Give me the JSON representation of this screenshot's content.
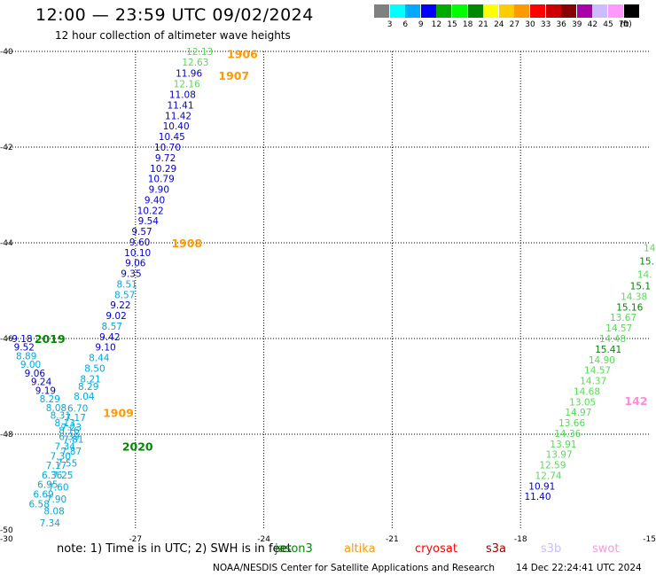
{
  "title": "12:00 — 23:59 UTC 09/02/2024",
  "subtitle": "12 hour collection of altimeter wave heights",
  "legend": {
    "colors": [
      "#808080",
      "#00ffff",
      "#00aaff",
      "#0000ff",
      "#00aa00",
      "#00ff00",
      "#008800",
      "#ffff00",
      "#ffcc00",
      "#ff9900",
      "#ff0000",
      "#cc0000",
      "#880000",
      "#aa00aa",
      "#ccbbff",
      "#ff99ff",
      "#000000"
    ],
    "labels": [
      "3",
      "6",
      "9",
      "12",
      "15",
      "18",
      "21",
      "24",
      "27",
      "30",
      "33",
      "36",
      "39",
      "42",
      "45",
      "70"
    ],
    "unit": "(ft)"
  },
  "axes": {
    "lon_ticks": [
      "-30",
      "-27",
      "-24",
      "-21",
      "-18",
      "-15"
    ],
    "lat_ticks": [
      "-40",
      "-42",
      "-44",
      "-46",
      "-48",
      "-50"
    ]
  },
  "passes": [
    {
      "label": "1906",
      "color": "#ff9900",
      "lon": -24.5,
      "lat": -40.05
    },
    {
      "label": "1907",
      "color": "#ff9900",
      "lon": -24.7,
      "lat": -40.5
    },
    {
      "label": "1908",
      "color": "#ff9900",
      "lon": -25.8,
      "lat": -44.0
    },
    {
      "label": "2019",
      "color": "#008800",
      "lon": -29.0,
      "lat": -46.0
    },
    {
      "label": "1909",
      "color": "#ff9900",
      "lon": -27.4,
      "lat": -47.55
    },
    {
      "label": "2020",
      "color": "#008800",
      "lon": -26.95,
      "lat": -48.25
    },
    {
      "label": "142",
      "color": "#ff88dd",
      "lon": -15.3,
      "lat": -47.3
    }
  ],
  "wave_heights": [
    {
      "value": "12.13",
      "color": "#55dd55",
      "lon": -25.5,
      "lat": -40.0
    },
    {
      "value": "12.63",
      "color": "#55dd55",
      "lon": -25.6,
      "lat": -40.22
    },
    {
      "value": "11.96",
      "color": "#0000cc",
      "lon": -25.75,
      "lat": -40.45
    },
    {
      "value": "12.16",
      "color": "#55dd55",
      "lon": -25.8,
      "lat": -40.68
    },
    {
      "value": "11.08",
      "color": "#0000cc",
      "lon": -25.9,
      "lat": -40.9
    },
    {
      "value": "11.41",
      "color": "#0000cc",
      "lon": -25.95,
      "lat": -41.12
    },
    {
      "value": "11.42",
      "color": "#0000cc",
      "lon": -26.0,
      "lat": -41.34
    },
    {
      "value": "10.40",
      "color": "#0000cc",
      "lon": -26.05,
      "lat": -41.56
    },
    {
      "value": "10.45",
      "color": "#0000cc",
      "lon": -26.15,
      "lat": -41.78
    },
    {
      "value": "10.70",
      "color": "#0000cc",
      "lon": -26.25,
      "lat": -42.0
    },
    {
      "value": "9.72",
      "color": "#0000cc",
      "lon": -26.3,
      "lat": -42.22
    },
    {
      "value": "10.29",
      "color": "#0000cc",
      "lon": -26.35,
      "lat": -42.44
    },
    {
      "value": "10.79",
      "color": "#0000cc",
      "lon": -26.4,
      "lat": -42.66
    },
    {
      "value": "9.90",
      "color": "#0000cc",
      "lon": -26.45,
      "lat": -42.88
    },
    {
      "value": "9.40",
      "color": "#0000cc",
      "lon": -26.55,
      "lat": -43.1
    },
    {
      "value": "10.22",
      "color": "#0000cc",
      "lon": -26.65,
      "lat": -43.32
    },
    {
      "value": "9.54",
      "color": "#0000cc",
      "lon": -26.7,
      "lat": -43.54
    },
    {
      "value": "9.57",
      "color": "#0000cc",
      "lon": -26.85,
      "lat": -43.76
    },
    {
      "value": "9.60",
      "color": "#0000cc",
      "lon": -26.9,
      "lat": -43.98
    },
    {
      "value": "10.10",
      "color": "#0000cc",
      "lon": -26.95,
      "lat": -44.2
    },
    {
      "value": "9.06",
      "color": "#0000cc",
      "lon": -27.0,
      "lat": -44.42
    },
    {
      "value": "9.35",
      "color": "#0000cc",
      "lon": -27.1,
      "lat": -44.64
    },
    {
      "value": "8.51",
      "color": "#00aadd",
      "lon": -27.2,
      "lat": -44.86
    },
    {
      "value": "8.57",
      "color": "#00aadd",
      "lon": -27.25,
      "lat": -45.08
    },
    {
      "value": "9.22",
      "color": "#0000cc",
      "lon": -27.35,
      "lat": -45.3
    },
    {
      "value": "9.02",
      "color": "#0000cc",
      "lon": -27.45,
      "lat": -45.52
    },
    {
      "value": "8.57",
      "color": "#00aadd",
      "lon": -27.55,
      "lat": -45.74
    },
    {
      "value": "9.42",
      "color": "#0000cc",
      "lon": -27.6,
      "lat": -45.96
    },
    {
      "value": "9.10",
      "color": "#0000cc",
      "lon": -27.7,
      "lat": -46.18
    },
    {
      "value": "8.44",
      "color": "#00aadd",
      "lon": -27.85,
      "lat": -46.4
    },
    {
      "value": "8.50",
      "color": "#00aadd",
      "lon": -27.95,
      "lat": -46.62
    },
    {
      "value": "8.21",
      "color": "#00aadd",
      "lon": -28.05,
      "lat": -46.84
    },
    {
      "value": "8.29",
      "color": "#00aadd",
      "lon": -28.1,
      "lat": -47.0
    },
    {
      "value": "8.04",
      "color": "#00aadd",
      "lon": -28.2,
      "lat": -47.2
    },
    {
      "value": "6.70",
      "color": "#00aadd",
      "lon": -28.35,
      "lat": -47.45
    },
    {
      "value": "7.17",
      "color": "#00aadd",
      "lon": -28.4,
      "lat": -47.65
    },
    {
      "value": "7.23",
      "color": "#00aadd",
      "lon": -28.5,
      "lat": -47.85
    },
    {
      "value": "6.39",
      "color": "#00aadd",
      "lon": -28.55,
      "lat": -48.05
    },
    {
      "value": "7.34",
      "color": "#00aadd",
      "lon": -28.65,
      "lat": -48.25
    },
    {
      "value": "7.30",
      "color": "#00aadd",
      "lon": -28.75,
      "lat": -48.45
    },
    {
      "value": "7.17",
      "color": "#00aadd",
      "lon": -28.85,
      "lat": -48.65
    },
    {
      "value": "6.36",
      "color": "#00aadd",
      "lon": -28.95,
      "lat": -48.85
    },
    {
      "value": "6.95",
      "color": "#00aadd",
      "lon": -29.05,
      "lat": -49.05
    },
    {
      "value": "6.69",
      "color": "#00aadd",
      "lon": -29.15,
      "lat": -49.25
    },
    {
      "value": "6.58",
      "color": "#00aadd",
      "lon": -29.25,
      "lat": -49.45
    },
    {
      "value": "9.18",
      "color": "#0000cc",
      "lon": -29.65,
      "lat": -46.0
    },
    {
      "value": "9.52",
      "color": "#0000cc",
      "lon": -29.6,
      "lat": -46.18
    },
    {
      "value": "8.89",
      "color": "#00aadd",
      "lon": -29.55,
      "lat": -46.36
    },
    {
      "value": "9.00",
      "color": "#00aadd",
      "lon": -29.45,
      "lat": -46.54
    },
    {
      "value": "9.06",
      "color": "#0000cc",
      "lon": -29.35,
      "lat": -46.72
    },
    {
      "value": "9.24",
      "color": "#0000cc",
      "lon": -29.2,
      "lat": -46.9
    },
    {
      "value": "9.19",
      "color": "#0000cc",
      "lon": -29.1,
      "lat": -47.08
    },
    {
      "value": "8.29",
      "color": "#00aadd",
      "lon": -29.0,
      "lat": -47.26
    },
    {
      "value": "8.08",
      "color": "#00aadd",
      "lon": -28.85,
      "lat": -47.44
    },
    {
      "value": "8.31",
      "color": "#00aadd",
      "lon": -28.75,
      "lat": -47.6
    },
    {
      "value": "8.13",
      "color": "#00aadd",
      "lon": -28.65,
      "lat": -47.76
    },
    {
      "value": "8.16",
      "color": "#00aadd",
      "lon": -28.55,
      "lat": -47.92
    },
    {
      "value": "7.81",
      "color": "#00aadd",
      "lon": -28.45,
      "lat": -48.1
    },
    {
      "value": "7.87",
      "color": "#00aadd",
      "lon": -28.5,
      "lat": -48.35
    },
    {
      "value": "7.55",
      "color": "#00aadd",
      "lon": -28.6,
      "lat": -48.6
    },
    {
      "value": "7.25",
      "color": "#00aadd",
      "lon": -28.7,
      "lat": -48.85
    },
    {
      "value": "7.60",
      "color": "#00aadd",
      "lon": -28.8,
      "lat": -49.1
    },
    {
      "value": "7.90",
      "color": "#00aadd",
      "lon": -28.85,
      "lat": -49.35
    },
    {
      "value": "8.08",
      "color": "#00aadd",
      "lon": -28.9,
      "lat": -49.6
    },
    {
      "value": "7.34",
      "color": "#00aadd",
      "lon": -29.0,
      "lat": -49.85
    },
    {
      "value": "14.",
      "color": "#55dd55",
      "lon": -14.95,
      "lat": -44.1
    },
    {
      "value": "15.",
      "color": "#008800",
      "lon": -15.05,
      "lat": -44.38
    },
    {
      "value": "14.",
      "color": "#55dd55",
      "lon": -15.1,
      "lat": -44.66
    },
    {
      "value": "15.1",
      "color": "#008800",
      "lon": -15.2,
      "lat": -44.9
    },
    {
      "value": "14.38",
      "color": "#55dd55",
      "lon": -15.35,
      "lat": -45.12
    },
    {
      "value": "15.16",
      "color": "#008800",
      "lon": -15.45,
      "lat": -45.34
    },
    {
      "value": "13.67",
      "color": "#55dd55",
      "lon": -15.6,
      "lat": -45.56
    },
    {
      "value": "14.57",
      "color": "#55dd55",
      "lon": -15.7,
      "lat": -45.78
    },
    {
      "value": "14.48",
      "color": "#55dd55",
      "lon": -15.85,
      "lat": -46.0
    },
    {
      "value": "15.41",
      "color": "#008800",
      "lon": -15.95,
      "lat": -46.22
    },
    {
      "value": "14.90",
      "color": "#55dd55",
      "lon": -16.1,
      "lat": -46.44
    },
    {
      "value": "14.57",
      "color": "#55dd55",
      "lon": -16.2,
      "lat": -46.66
    },
    {
      "value": "14.37",
      "color": "#55dd55",
      "lon": -16.3,
      "lat": -46.88
    },
    {
      "value": "14.68",
      "color": "#55dd55",
      "lon": -16.45,
      "lat": -47.1
    },
    {
      "value": "13.05",
      "color": "#55dd55",
      "lon": -16.55,
      "lat": -47.32
    },
    {
      "value": "14.97",
      "color": "#55dd55",
      "lon": -16.65,
      "lat": -47.54
    },
    {
      "value": "13.66",
      "color": "#55dd55",
      "lon": -16.8,
      "lat": -47.76
    },
    {
      "value": "14.36",
      "color": "#55dd55",
      "lon": -16.9,
      "lat": -47.98
    },
    {
      "value": "13.91",
      "color": "#55dd55",
      "lon": -17.0,
      "lat": -48.2
    },
    {
      "value": "13.97",
      "color": "#55dd55",
      "lon": -17.1,
      "lat": -48.42
    },
    {
      "value": "12.59",
      "color": "#55dd55",
      "lon": -17.25,
      "lat": -48.64
    },
    {
      "value": "12.74",
      "color": "#55dd55",
      "lon": -17.35,
      "lat": -48.86
    },
    {
      "value": "10.91",
      "color": "#0000cc",
      "lon": -17.5,
      "lat": -49.08
    },
    {
      "value": "11.40",
      "color": "#0000cc",
      "lon": -17.6,
      "lat": -49.3
    }
  ],
  "note": "note: 1) Time is in UTC; 2) SWH is in feet",
  "satellites": [
    {
      "name": "jason3",
      "color": "#008800"
    },
    {
      "name": "altika",
      "color": "#ff9900"
    },
    {
      "name": "cryosat",
      "color": "#ff0000"
    },
    {
      "name": "s3a",
      "color": "#990000"
    },
    {
      "name": "s3b",
      "color": "#ccbbff"
    },
    {
      "name": "swot",
      "color": "#ff99dd"
    }
  ],
  "footer": {
    "org": "NOAA/NESDIS Center for Satellite Applications and Research",
    "timestamp": "14 Dec 22:24:41 UTC 2024"
  }
}
